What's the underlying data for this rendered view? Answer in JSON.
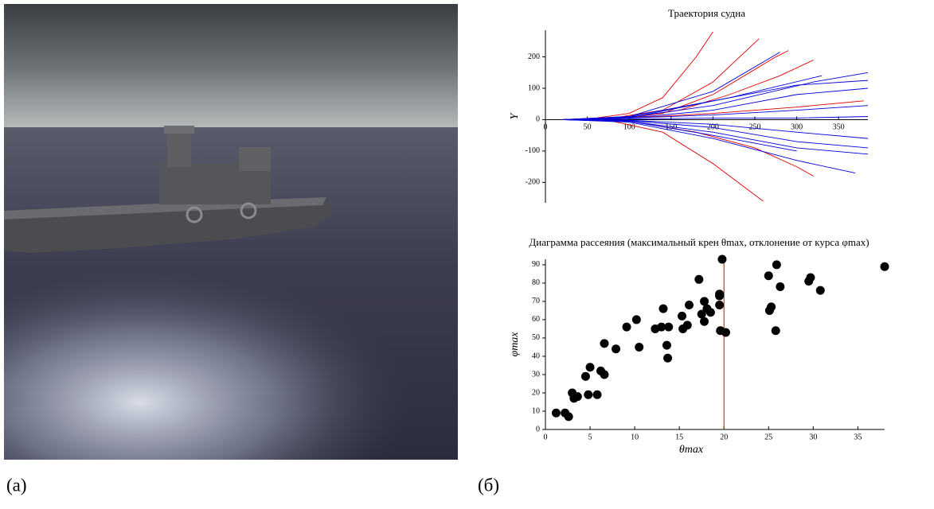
{
  "figure": {
    "caption_a": "(а)",
    "caption_b": "(б)"
  },
  "chart_data": [
    {
      "type": "line",
      "title": "Траектория судна",
      "y_label": "Y",
      "xlim": [
        0,
        385
      ],
      "ylim": [
        -265,
        285
      ],
      "xticks": [
        0,
        50,
        100,
        150,
        200,
        250,
        300,
        350
      ],
      "yticks": [
        -200,
        -100,
        0,
        100,
        200
      ],
      "series": [
        {
          "color": "#e00000",
          "x": [
            20,
            60,
            100,
            140,
            180,
            200
          ],
          "values": [
            0,
            5,
            20,
            70,
            200,
            280
          ]
        },
        {
          "color": "#e00000",
          "x": [
            20,
            80,
            140,
            200,
            255
          ],
          "values": [
            0,
            5,
            30,
            120,
            258
          ]
        },
        {
          "color": "#e00000",
          "x": [
            20,
            80,
            140,
            200,
            250,
            275,
            290
          ],
          "values": [
            0,
            3,
            20,
            80,
            160,
            200,
            220
          ]
        },
        {
          "color": "#e00000",
          "x": [
            20,
            100,
            160,
            220,
            280,
            320
          ],
          "values": [
            0,
            5,
            30,
            80,
            140,
            190
          ]
        },
        {
          "color": "#e00000",
          "x": [
            20,
            80,
            140,
            200,
            260
          ],
          "values": [
            0,
            -5,
            -40,
            -140,
            -260
          ]
        },
        {
          "color": "#e00000",
          "x": [
            20,
            100,
            180,
            250,
            300,
            320
          ],
          "values": [
            0,
            -5,
            -40,
            -90,
            -150,
            -180
          ]
        },
        {
          "color": "#e00000",
          "x": [
            20,
            100,
            200,
            300,
            380
          ],
          "values": [
            0,
            5,
            20,
            40,
            60
          ]
        },
        {
          "color": "#0000dd",
          "x": [
            20,
            100,
            200,
            300,
            385
          ],
          "values": [
            0,
            10,
            60,
            110,
            125
          ]
        },
        {
          "color": "#0000dd",
          "x": [
            20,
            100,
            200,
            280
          ],
          "values": [
            0,
            10,
            90,
            215
          ]
        },
        {
          "color": "#0000dd",
          "x": [
            20,
            100,
            200,
            300,
            385
          ],
          "values": [
            0,
            5,
            30,
            80,
            100
          ]
        },
        {
          "color": "#0000dd",
          "x": [
            20,
            100,
            200,
            300,
            385
          ],
          "values": [
            0,
            5,
            15,
            30,
            45
          ]
        },
        {
          "color": "#0000dd",
          "x": [
            20,
            100,
            200,
            300,
            385
          ],
          "values": [
            0,
            2,
            5,
            5,
            10
          ]
        },
        {
          "color": "#0000dd",
          "x": [
            20,
            100,
            200,
            300,
            385
          ],
          "values": [
            0,
            -2,
            -15,
            -40,
            -60
          ]
        },
        {
          "color": "#0000dd",
          "x": [
            20,
            100,
            200,
            300,
            385
          ],
          "values": [
            0,
            -5,
            -40,
            -90,
            -110
          ]
        },
        {
          "color": "#0000dd",
          "x": [
            20,
            100,
            200,
            300,
            370
          ],
          "values": [
            0,
            -8,
            -60,
            -130,
            -170
          ]
        },
        {
          "color": "#0000dd",
          "x": [
            20,
            100,
            200,
            300,
            385
          ],
          "values": [
            0,
            -3,
            -25,
            -70,
            -90
          ]
        },
        {
          "color": "#0000dd",
          "x": [
            20,
            100,
            200,
            320,
            385
          ],
          "values": [
            0,
            8,
            45,
            120,
            150
          ]
        },
        {
          "color": "#0000dd",
          "x": [
            20,
            100,
            200,
            300
          ],
          "values": [
            0,
            -5,
            -50,
            -100
          ]
        },
        {
          "color": "#0000dd",
          "x": [
            20,
            100,
            220,
            330
          ],
          "values": [
            0,
            6,
            70,
            140
          ]
        }
      ]
    },
    {
      "type": "scatter",
      "title": "Диаграмма рассеяния (максимальный крен θmax, отклонение от курса φmax)",
      "x_label": "θmax",
      "y_label": "φmax",
      "color": "#000000",
      "xlim": [
        0,
        38
      ],
      "ylim": [
        0,
        93
      ],
      "xticks": [
        0,
        5,
        10,
        15,
        20,
        25,
        30,
        35
      ],
      "yticks": [
        0,
        10,
        20,
        30,
        40,
        50,
        60,
        70,
        80,
        90
      ],
      "vline": 20,
      "vline_color": "#e00000",
      "x": [
        1.2,
        2.2,
        2.6,
        3.0,
        3.2,
        3.6,
        4.5,
        4.8,
        5.0,
        5.8,
        6.2,
        6.6,
        6.6,
        7.9,
        9.1,
        10.2,
        10.5,
        12.3,
        13.0,
        13.2,
        13.6,
        13.7,
        13.8,
        15.3,
        15.4,
        15.9,
        16.1,
        17.2,
        17.5,
        17.8,
        17.8,
        18.1,
        18.5,
        19.5,
        19.5,
        19.5,
        19.6,
        19.8,
        20.2,
        25.0,
        25.1,
        25.3,
        25.8,
        25.9,
        26.3,
        29.5,
        29.7,
        30.8,
        38
      ],
      "values": [
        9,
        9,
        7,
        20,
        17,
        18,
        29,
        19,
        34,
        19,
        32,
        30,
        47,
        44,
        56,
        60,
        45,
        55,
        56,
        66,
        46,
        39,
        56,
        62,
        55,
        57,
        68,
        82,
        63,
        70,
        59,
        66,
        64,
        68,
        74,
        73,
        54,
        93,
        53,
        84,
        65,
        67,
        54,
        90,
        78,
        81,
        83,
        76,
        89
      ]
    }
  ]
}
